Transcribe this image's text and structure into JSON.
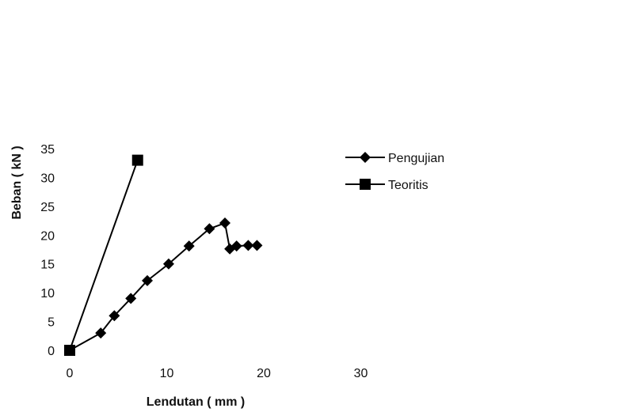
{
  "chart_data": {
    "type": "line",
    "xlabel": "Lendutan ( mm )",
    "ylabel": "Beban ( kN )",
    "xlim": [
      0,
      30
    ],
    "ylim": [
      0,
      35
    ],
    "x_ticks": [
      0,
      10,
      20,
      30
    ],
    "y_ticks": [
      0,
      5,
      10,
      15,
      20,
      25,
      30,
      35
    ],
    "grid": false,
    "legend_position": "right",
    "series": [
      {
        "name": "Pengujian",
        "marker": "diamond",
        "color": "#000000",
        "x": [
          0,
          3.2,
          4.6,
          6.3,
          8.0,
          10.2,
          12.3,
          14.4,
          16.0,
          16.5,
          17.2,
          18.4,
          19.3
        ],
        "y": [
          0,
          3,
          6,
          9,
          12.1,
          15,
          18.1,
          21.1,
          22.1,
          17.6,
          18.1,
          18.2,
          18.2
        ]
      },
      {
        "name": "Teoritis",
        "marker": "square",
        "color": "#000000",
        "x": [
          0,
          7.0
        ],
        "y": [
          0,
          33
        ]
      }
    ]
  }
}
